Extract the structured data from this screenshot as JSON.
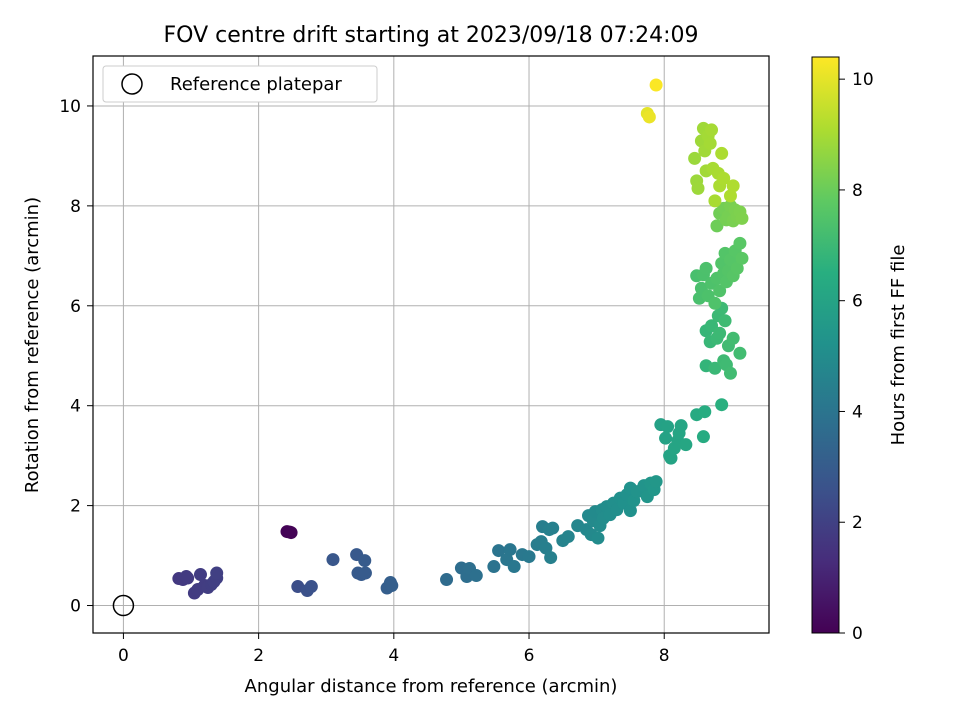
{
  "chart_data": {
    "type": "scatter",
    "title": "FOV centre drift starting at 2023/09/18 07:24:09",
    "xlabel": "Angular distance from reference (arcmin)",
    "ylabel": "Rotation from reference (arcmin)",
    "xlim": [
      -0.45,
      9.55
    ],
    "ylim": [
      -0.55,
      11.0
    ],
    "xticks": [
      0,
      2,
      4,
      6,
      8
    ],
    "yticks": [
      0,
      2,
      4,
      6,
      8,
      10
    ],
    "grid": true,
    "legend": {
      "placement": "top-left",
      "entries": [
        "Reference platepar"
      ]
    },
    "reference_point": {
      "label": "Reference platepar",
      "x": 0,
      "y": 0
    },
    "colorbar": {
      "label": "Hours from first FF file",
      "colormap": "viridis",
      "range": [
        0,
        10.4
      ],
      "ticks": [
        0,
        2,
        4,
        6,
        8,
        10
      ]
    },
    "series": [
      {
        "points": [
          [
            2.42,
            1.48,
            0.05
          ],
          [
            2.46,
            1.47,
            0.07
          ],
          [
            2.48,
            1.46,
            0.08
          ],
          [
            0.82,
            0.54,
            1.7
          ],
          [
            0.88,
            0.52,
            1.72
          ],
          [
            0.93,
            0.58,
            1.75
          ],
          [
            0.95,
            0.55,
            1.76
          ],
          [
            1.05,
            0.25,
            1.8
          ],
          [
            1.1,
            0.32,
            1.82
          ],
          [
            1.14,
            0.62,
            1.84
          ],
          [
            1.2,
            0.4,
            1.86
          ],
          [
            1.25,
            0.36,
            1.88
          ],
          [
            1.3,
            0.42,
            1.9
          ],
          [
            1.34,
            0.48,
            1.92
          ],
          [
            1.38,
            0.55,
            1.94
          ],
          [
            1.38,
            0.65,
            1.95
          ],
          [
            2.58,
            0.38,
            2.45
          ],
          [
            2.72,
            0.3,
            2.55
          ],
          [
            2.78,
            0.38,
            2.6
          ],
          [
            3.1,
            0.92,
            2.8
          ],
          [
            3.45,
            1.02,
            2.9
          ],
          [
            3.47,
            0.65,
            2.92
          ],
          [
            3.52,
            0.62,
            2.94
          ],
          [
            3.57,
            0.9,
            2.96
          ],
          [
            3.58,
            0.65,
            2.97
          ],
          [
            3.9,
            0.35,
            3.1
          ],
          [
            3.95,
            0.46,
            3.12
          ],
          [
            3.97,
            0.4,
            3.13
          ],
          [
            4.78,
            0.52,
            3.6
          ],
          [
            5.0,
            0.75,
            3.7
          ],
          [
            5.08,
            0.58,
            3.75
          ],
          [
            5.12,
            0.74,
            3.77
          ],
          [
            5.22,
            0.6,
            3.8
          ],
          [
            5.48,
            0.78,
            3.95
          ],
          [
            5.55,
            1.1,
            4.0
          ],
          [
            5.67,
            0.92,
            4.05
          ],
          [
            5.72,
            1.12,
            4.08
          ],
          [
            5.78,
            0.78,
            4.1
          ],
          [
            5.9,
            1.02,
            4.15
          ],
          [
            6.0,
            0.98,
            4.2
          ],
          [
            6.12,
            1.22,
            4.35
          ],
          [
            6.18,
            1.28,
            4.4
          ],
          [
            6.2,
            1.58,
            4.42
          ],
          [
            6.25,
            1.15,
            4.45
          ],
          [
            6.3,
            1.52,
            4.48
          ],
          [
            6.32,
            0.96,
            4.48
          ],
          [
            6.35,
            1.55,
            4.5
          ],
          [
            6.5,
            1.3,
            4.6
          ],
          [
            6.58,
            1.38,
            4.65
          ],
          [
            6.72,
            1.6,
            4.75
          ],
          [
            6.85,
            1.52,
            4.8
          ],
          [
            6.88,
            1.8,
            4.85
          ],
          [
            6.92,
            1.42,
            4.88
          ],
          [
            6.95,
            1.7,
            4.9
          ],
          [
            6.98,
            1.88,
            4.92
          ],
          [
            7.02,
            1.35,
            4.95
          ],
          [
            7.05,
            1.6,
            4.98
          ],
          [
            7.08,
            1.92,
            5.0
          ],
          [
            7.1,
            1.75,
            5.02
          ],
          [
            7.15,
            1.98,
            5.05
          ],
          [
            7.2,
            1.82,
            5.08
          ],
          [
            7.25,
            2.05,
            5.1
          ],
          [
            7.3,
            1.92,
            5.12
          ],
          [
            7.35,
            2.15,
            5.15
          ],
          [
            7.4,
            2.05,
            5.18
          ],
          [
            7.45,
            2.22,
            5.2
          ],
          [
            7.5,
            1.9,
            5.22
          ],
          [
            7.5,
            2.35,
            5.25
          ],
          [
            7.55,
            2.1,
            5.28
          ],
          [
            7.6,
            2.28,
            5.3
          ],
          [
            7.7,
            2.4,
            5.35
          ],
          [
            7.75,
            2.18,
            5.4
          ],
          [
            7.8,
            2.45,
            5.42
          ],
          [
            7.85,
            2.32,
            5.45
          ],
          [
            7.88,
            2.48,
            5.48
          ],
          [
            7.95,
            3.62,
            5.9
          ],
          [
            8.02,
            3.35,
            5.95
          ],
          [
            8.05,
            3.58,
            5.97
          ],
          [
            8.08,
            3.0,
            6.0
          ],
          [
            8.1,
            2.95,
            6.02
          ],
          [
            8.15,
            3.15,
            6.04
          ],
          [
            8.2,
            3.3,
            6.06
          ],
          [
            8.22,
            3.45,
            6.08
          ],
          [
            8.25,
            3.6,
            6.1
          ],
          [
            8.32,
            3.22,
            6.15
          ],
          [
            8.48,
            3.82,
            6.3
          ],
          [
            8.58,
            3.38,
            6.35
          ],
          [
            8.6,
            3.88,
            6.4
          ],
          [
            8.85,
            4.02,
            6.55
          ],
          [
            8.62,
            4.8,
            6.8
          ],
          [
            8.62,
            5.5,
            6.85
          ],
          [
            8.68,
            5.28,
            6.9
          ],
          [
            8.7,
            5.6,
            6.92
          ],
          [
            8.75,
            4.75,
            6.95
          ],
          [
            8.78,
            5.35,
            6.97
          ],
          [
            8.8,
            5.8,
            6.98
          ],
          [
            8.82,
            5.45,
            7.0
          ],
          [
            8.85,
            5.95,
            7.02
          ],
          [
            8.88,
            4.9,
            7.05
          ],
          [
            8.9,
            5.7,
            7.06
          ],
          [
            8.92,
            4.82,
            7.08
          ],
          [
            8.95,
            5.2,
            7.1
          ],
          [
            8.98,
            4.65,
            7.12
          ],
          [
            9.02,
            5.35,
            7.14
          ],
          [
            9.12,
            5.05,
            7.16
          ],
          [
            8.48,
            6.6,
            7.3
          ],
          [
            8.52,
            6.15,
            7.32
          ],
          [
            8.55,
            6.35,
            7.34
          ],
          [
            8.58,
            6.62,
            7.36
          ],
          [
            8.62,
            6.75,
            7.38
          ],
          [
            8.65,
            6.2,
            7.4
          ],
          [
            8.7,
            6.45,
            7.42
          ],
          [
            8.75,
            6.05,
            7.44
          ],
          [
            8.78,
            6.55,
            7.46
          ],
          [
            8.82,
            6.3,
            7.48
          ],
          [
            8.85,
            6.85,
            7.5
          ],
          [
            8.88,
            6.65,
            7.52
          ],
          [
            8.9,
            7.05,
            7.54
          ],
          [
            8.92,
            6.48,
            7.56
          ],
          [
            8.95,
            6.7,
            7.58
          ],
          [
            8.98,
            6.92,
            7.6
          ],
          [
            9.02,
            6.6,
            7.62
          ],
          [
            9.05,
            7.1,
            7.64
          ],
          [
            9.08,
            6.75,
            7.66
          ],
          [
            9.12,
            7.25,
            7.68
          ],
          [
            9.15,
            6.95,
            7.7
          ],
          [
            8.78,
            7.6,
            8.05
          ],
          [
            8.82,
            7.85,
            8.1
          ],
          [
            8.88,
            7.95,
            8.15
          ],
          [
            8.92,
            7.72,
            8.18
          ],
          [
            8.95,
            7.8,
            8.2
          ],
          [
            8.98,
            8.0,
            8.22
          ],
          [
            9.02,
            7.7,
            8.25
          ],
          [
            9.05,
            7.92,
            8.28
          ],
          [
            9.08,
            7.78,
            8.3
          ],
          [
            9.12,
            7.88,
            8.32
          ],
          [
            9.15,
            7.75,
            8.34
          ],
          [
            8.45,
            8.95,
            8.8
          ],
          [
            8.48,
            8.5,
            8.82
          ],
          [
            8.5,
            8.35,
            8.84
          ],
          [
            8.55,
            9.3,
            8.86
          ],
          [
            8.58,
            9.55,
            8.88
          ],
          [
            8.6,
            9.1,
            8.9
          ],
          [
            8.62,
            8.7,
            8.92
          ],
          [
            8.65,
            9.4,
            8.94
          ],
          [
            8.68,
            9.25,
            8.96
          ],
          [
            8.7,
            9.52,
            8.98
          ],
          [
            8.72,
            8.75,
            9.0
          ],
          [
            8.75,
            8.1,
            9.02
          ],
          [
            8.8,
            8.65,
            9.04
          ],
          [
            8.82,
            8.4,
            9.06
          ],
          [
            8.85,
            9.05,
            9.08
          ],
          [
            8.88,
            8.55,
            9.1
          ],
          [
            8.98,
            8.2,
            9.12
          ],
          [
            9.02,
            8.4,
            9.14
          ],
          [
            7.75,
            9.85,
            10.0
          ],
          [
            7.78,
            9.78,
            10.1
          ],
          [
            7.88,
            10.42,
            10.35
          ]
        ]
      }
    ]
  }
}
